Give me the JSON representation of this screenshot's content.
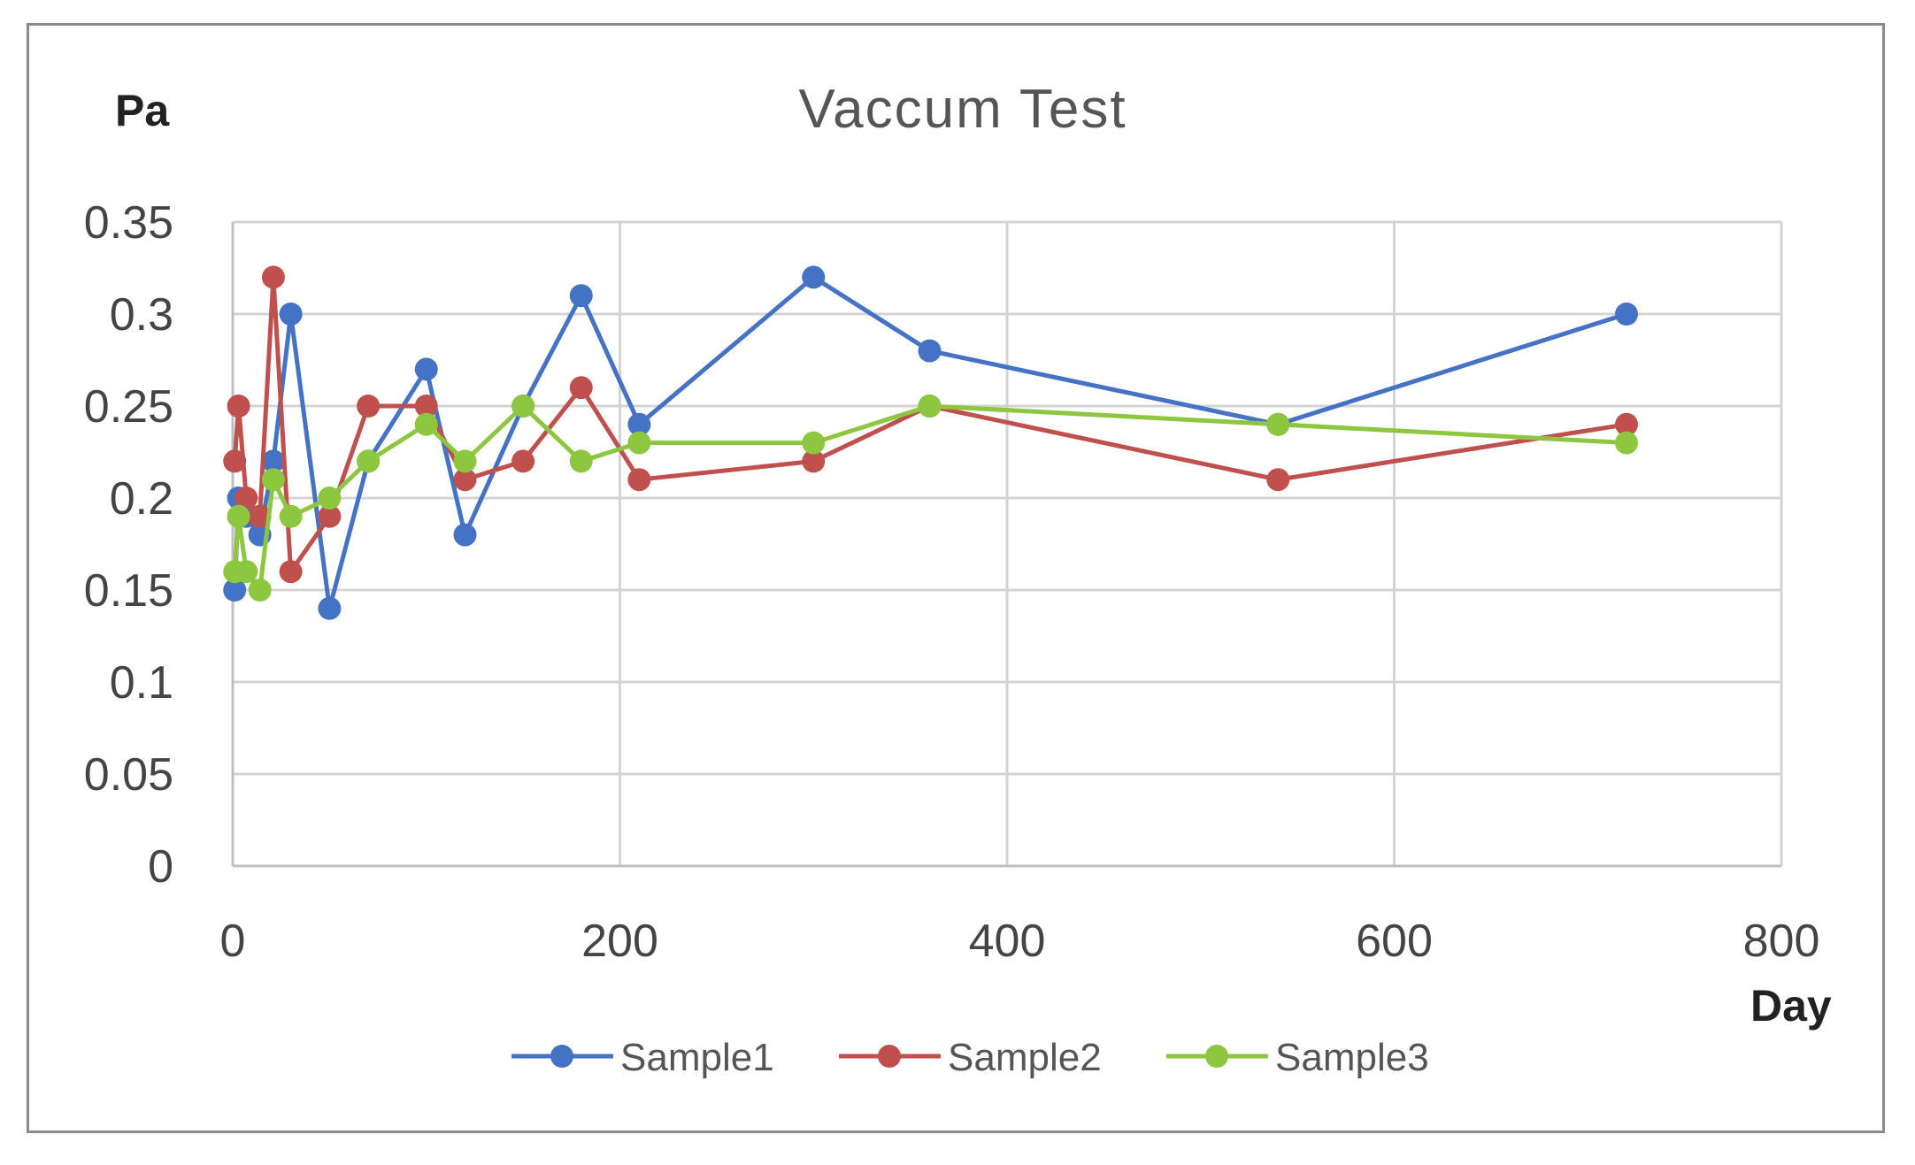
{
  "chart_data": {
    "type": "line",
    "title": "Vaccum Test",
    "xlabel": "Day",
    "ylabel": "Pa",
    "xlim": [
      0,
      800
    ],
    "ylim": [
      0,
      0.35
    ],
    "xticks": [
      0,
      200,
      400,
      600,
      800
    ],
    "yticks": [
      0,
      0.05,
      0.1,
      0.15,
      0.2,
      0.25,
      0.3,
      0.35
    ],
    "ytick_labels": [
      "0",
      "0.05",
      "0.1",
      "0.15",
      "0.2",
      "0.25",
      "0.3",
      "0.35"
    ],
    "xtick_labels": [
      "0",
      "200",
      "400",
      "600",
      "800"
    ],
    "grid": true,
    "legend_position": "bottom",
    "series": [
      {
        "name": "Sample1",
        "color": "#4472C4",
        "x": [
          1,
          3,
          7,
          14,
          21,
          30,
          50,
          70,
          100,
          120,
          150,
          180,
          210,
          300,
          360,
          540,
          720
        ],
        "y": [
          0.15,
          0.2,
          0.19,
          0.18,
          0.22,
          0.3,
          0.14,
          0.22,
          0.27,
          0.18,
          0.25,
          0.31,
          0.24,
          0.32,
          0.28,
          0.24,
          0.3
        ]
      },
      {
        "name": "Sample2",
        "color": "#C0504D",
        "x": [
          1,
          3,
          7,
          14,
          21,
          30,
          50,
          70,
          100,
          120,
          150,
          180,
          210,
          300,
          360,
          540,
          720
        ],
        "y": [
          0.22,
          0.25,
          0.2,
          0.19,
          0.32,
          0.16,
          0.19,
          0.25,
          0.25,
          0.21,
          0.22,
          0.26,
          0.21,
          0.22,
          0.25,
          0.21,
          0.24
        ]
      },
      {
        "name": "Sample3",
        "color": "#8DC63F",
        "x": [
          1,
          3,
          7,
          14,
          21,
          30,
          50,
          70,
          100,
          120,
          150,
          180,
          210,
          300,
          360,
          540,
          720
        ],
        "y": [
          0.16,
          0.19,
          0.16,
          0.15,
          0.21,
          0.19,
          0.2,
          0.22,
          0.24,
          0.22,
          0.25,
          0.22,
          0.23,
          0.23,
          0.25,
          0.24,
          0.23
        ]
      }
    ]
  }
}
